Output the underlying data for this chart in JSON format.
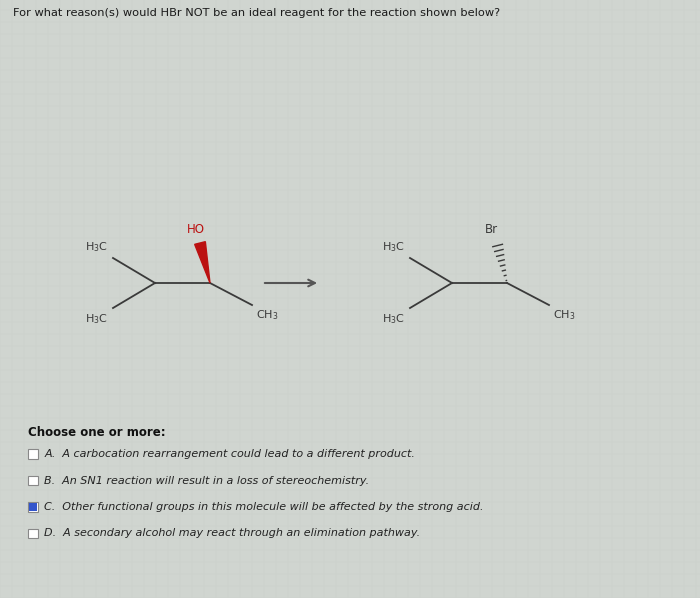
{
  "title": "For what reason(s) would HBr NOT be an ideal reagent for the reaction shown below?",
  "bg_color": "#d0d5d0",
  "grid_color": "#c8cdc8",
  "molecule_color": "#3a3a3a",
  "ho_color": "#bb1111",
  "arrow_color": "#555555",
  "choose_text": "Choose one or more:",
  "options": [
    {
      "letter": "A",
      "text": "A carbocation rearrangement could lead to a different product.",
      "checked": false
    },
    {
      "letter": "B",
      "text": "An SN1 reaction will result in a loss of stereochemistry.",
      "checked": false
    },
    {
      "letter": "C",
      "text": "Other functional groups in this molecule will be affected by the strong acid.",
      "checked": true
    },
    {
      "letter": "D",
      "text": "A secondary alcohol may react through an elimination pathway.",
      "checked": false
    }
  ]
}
